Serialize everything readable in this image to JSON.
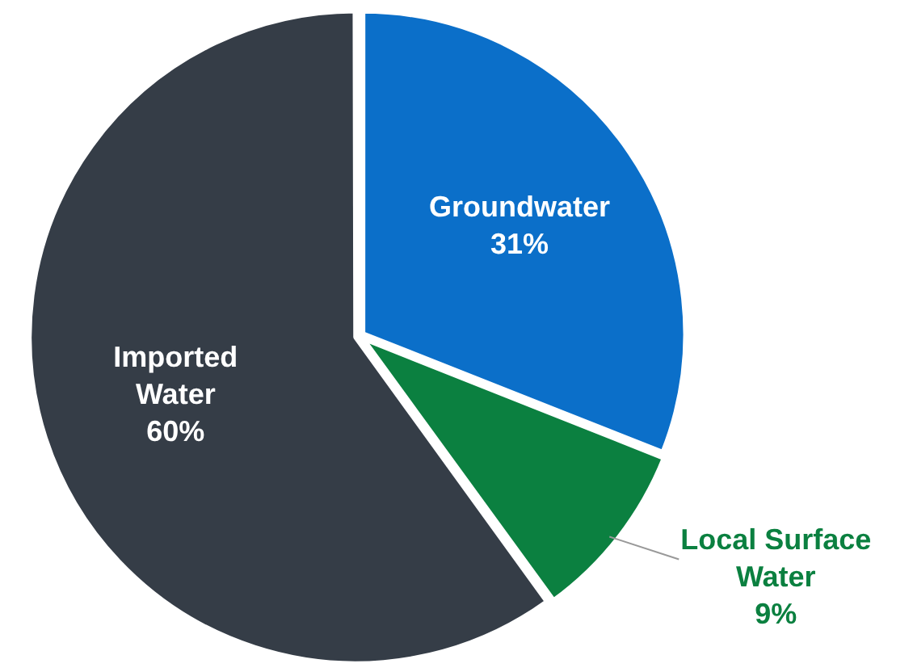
{
  "chart_data": {
    "type": "pie",
    "categories": [
      "Groundwater",
      "Local Surface Water",
      "Imported Water"
    ],
    "values": [
      31,
      9,
      60
    ],
    "colors": [
      "#0b6fc9",
      "#0b8040",
      "#353d47"
    ],
    "value_labels": [
      "31%",
      "9%",
      "60%"
    ],
    "legend": false
  }
}
